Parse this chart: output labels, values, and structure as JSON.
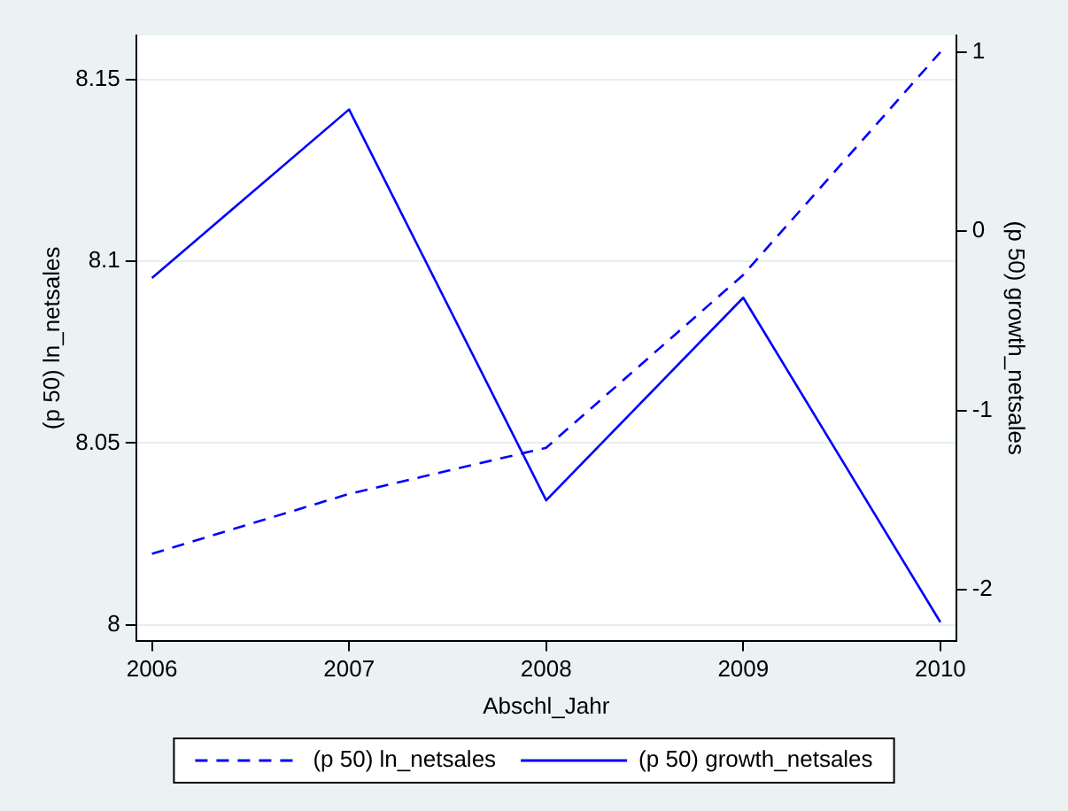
{
  "chart_data": {
    "type": "line",
    "xlabel": "Abschl_Jahr",
    "ylabel": "(p 50) ln_netsales",
    "y2label": "(p 50) growth_netsales",
    "x": [
      2006,
      2007,
      2008,
      2009,
      2010
    ],
    "xlim": [
      2005.92,
      2010.08
    ],
    "xticks": [
      2006,
      2007,
      2008,
      2009,
      2010
    ],
    "ylim": [
      7.9956,
      8.1622
    ],
    "yticks": [
      8,
      8.05,
      8.1,
      8.15
    ],
    "y2lim": [
      -2.283,
      1.093
    ],
    "y2ticks": [
      -2,
      -1,
      0,
      1
    ],
    "series": [
      {
        "name": "(p 50) ln_netsales",
        "color": "#0000ff",
        "line_style": "dashed",
        "values": [
          8.0195,
          8.036,
          8.0487,
          8.0963,
          8.1576
        ]
      },
      {
        "name": "(p 50) growth_netsales",
        "color": "#0000ff",
        "line_style": "solid",
        "axis": "y2",
        "values": [
          -0.26,
          0.68,
          -1.5,
          -0.37,
          -2.18
        ]
      }
    ],
    "grid": "y",
    "legend": "bottom",
    "marker": "none"
  }
}
